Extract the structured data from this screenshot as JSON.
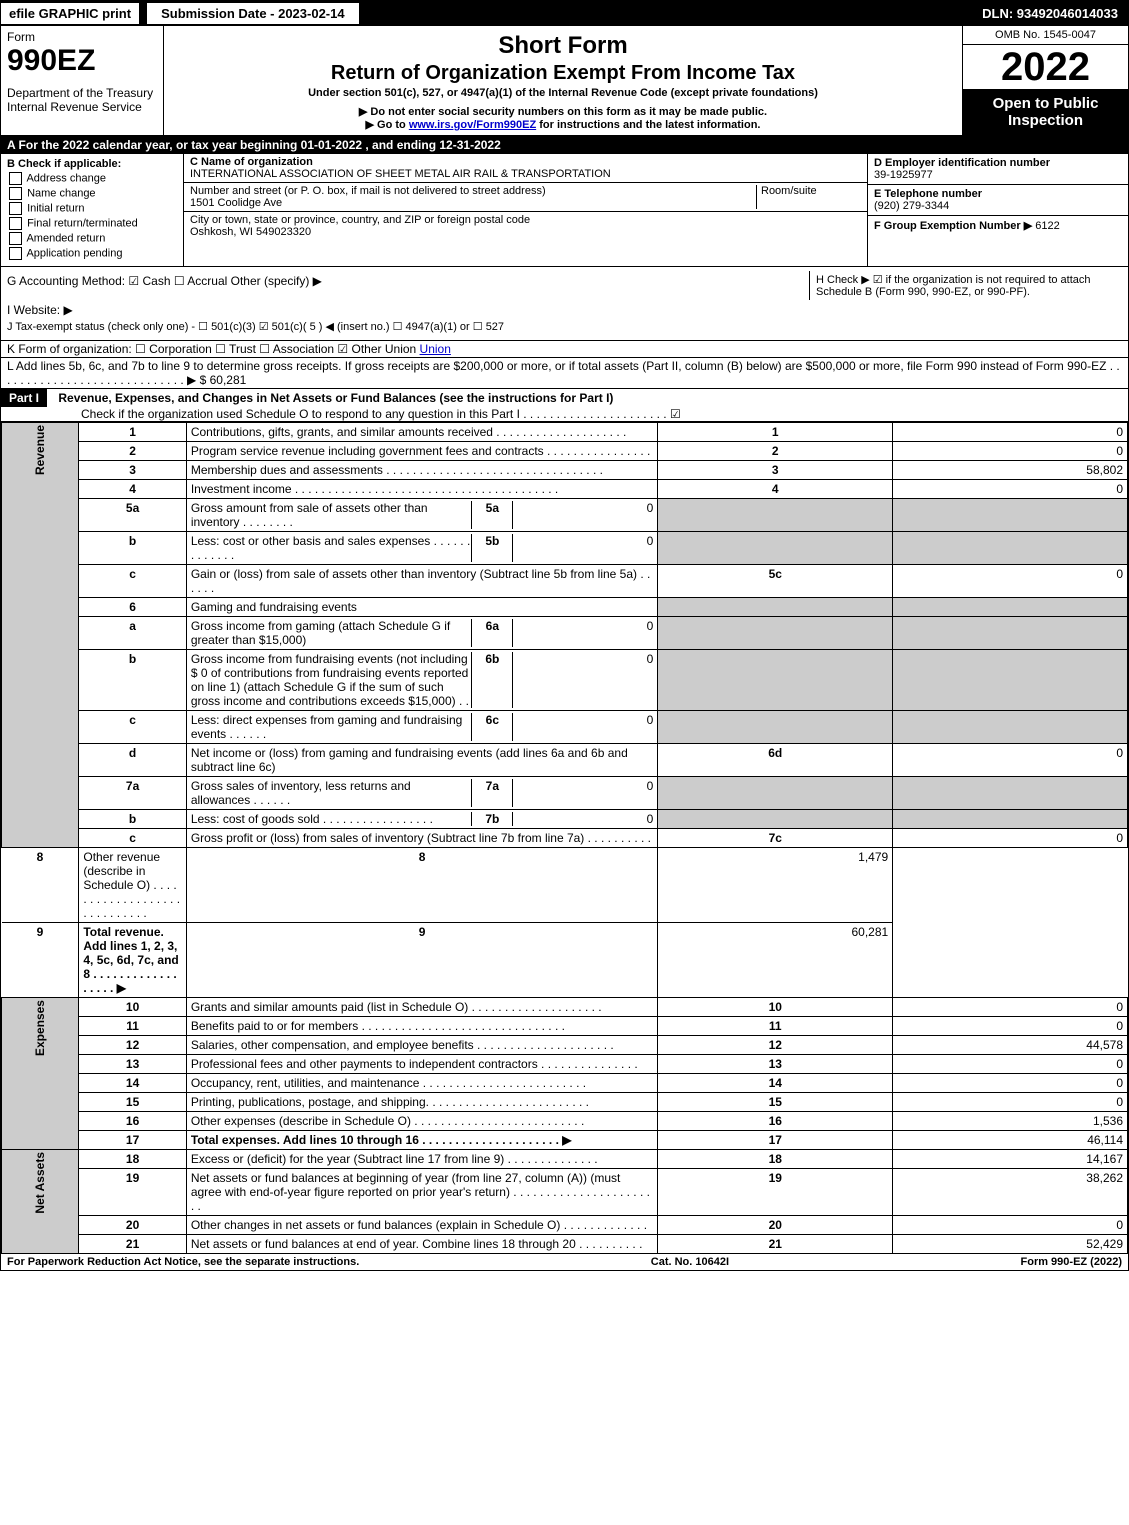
{
  "topbar": {
    "efile": "efile GRAPHIC print",
    "submission": "Submission Date - 2023-02-14",
    "dln": "DLN: 93492046014033"
  },
  "header": {
    "form_word": "Form",
    "form_num": "990EZ",
    "dept1": "Department of the Treasury",
    "dept2": "Internal Revenue Service",
    "title1": "Short Form",
    "title2": "Return of Organization Exempt From Income Tax",
    "sub1": "Under section 501(c), 527, or 4947(a)(1) of the Internal Revenue Code (except private foundations)",
    "sub2": "▶ Do not enter social security numbers on this form as it may be made public.",
    "sub3": "▶ Go to www.irs.gov/Form990EZ for instructions and the latest information.",
    "omb": "OMB No. 1545-0047",
    "year": "2022",
    "open": "Open to Public Inspection"
  },
  "sectionA": "A  For the 2022 calendar year, or tax year beginning 01-01-2022 , and ending 12-31-2022",
  "boxB": {
    "title": "B  Check if applicable:",
    "opts": [
      "Address change",
      "Name change",
      "Initial return",
      "Final return/terminated",
      "Amended return",
      "Application pending"
    ]
  },
  "boxC": {
    "label": "C Name of organization",
    "name": "INTERNATIONAL ASSOCIATION OF SHEET METAL AIR RAIL & TRANSPORTATION",
    "addr_label": "Number and street (or P. O. box, if mail is not delivered to street address)",
    "room_label": "Room/suite",
    "addr": "1501 Coolidge Ave",
    "city_label": "City or town, state or province, country, and ZIP or foreign postal code",
    "city": "Oshkosh, WI  549023320"
  },
  "boxD": {
    "label": "D Employer identification number",
    "val": "39-1925977"
  },
  "boxE": {
    "label": "E Telephone number",
    "val": "(920) 279-3344"
  },
  "boxF": {
    "label": "F Group Exemption Number  ▶",
    "val": "6122"
  },
  "lineG": "G Accounting Method:  ☑ Cash  ☐ Accrual  Other (specify) ▶",
  "lineH": "H  Check ▶ ☑ if the organization is not required to attach Schedule B (Form 990, 990-EZ, or 990-PF).",
  "lineI": "I Website: ▶",
  "lineJ": "J Tax-exempt status (check only one) - ☐ 501(c)(3)  ☑ 501(c)( 5 ) ◀ (insert no.)  ☐ 4947(a)(1) or  ☐ 527",
  "lineK": "K Form of organization:  ☐ Corporation  ☐ Trust  ☐ Association  ☑ Other Union",
  "lineL": "L Add lines 5b, 6c, and 7b to line 9 to determine gross receipts. If gross receipts are $200,000 or more, or if total assets (Part II, column (B) below) are $500,000 or more, file Form 990 instead of Form 990-EZ  . . . . . . . . . . . . . . . . . . . . . . . . . . . . .  ▶ $ 60,281",
  "part1": {
    "label": "Part I",
    "title": "Revenue, Expenses, and Changes in Net Assets or Fund Balances (see the instructions for Part I)",
    "check": "Check if the organization used Schedule O to respond to any question in this Part I  . . . . . . . . . . . . . . . . . . . . . .  ☑"
  },
  "sidelabels": {
    "revenue": "Revenue",
    "expenses": "Expenses",
    "netassets": "Net Assets"
  },
  "rows": [
    {
      "n": "1",
      "desc": "Contributions, gifts, grants, and similar amounts received  . . . . . . . . . . . . . . . . . . . .",
      "box": "1",
      "amt": "0"
    },
    {
      "n": "2",
      "desc": "Program service revenue including government fees and contracts  . . . . . . . . . . . . . . . .",
      "box": "2",
      "amt": "0"
    },
    {
      "n": "3",
      "desc": "Membership dues and assessments  . . . . . . . . . . . . . . . . . . . . . . . . . . . . . . . . .",
      "box": "3",
      "amt": "58,802"
    },
    {
      "n": "4",
      "desc": "Investment income  . . . . . . . . . . . . . . . . . . . . . . . . . . . . . . . . . . . . . . . .",
      "box": "4",
      "amt": "0"
    },
    {
      "n": "5a",
      "desc": "Gross amount from sale of assets other than inventory  . . . . . . . .",
      "ibox": "5a",
      "ival": "0"
    },
    {
      "n": "b",
      "desc": "Less: cost or other basis and sales expenses  . . . . . . . . . . . . .",
      "ibox": "5b",
      "ival": "0"
    },
    {
      "n": "c",
      "desc": "Gain or (loss) from sale of assets other than inventory (Subtract line 5b from line 5a)  . . . . . .",
      "box": "5c",
      "amt": "0"
    },
    {
      "n": "6",
      "desc": "Gaming and fundraising events"
    },
    {
      "n": "a",
      "desc": "Gross income from gaming (attach Schedule G if greater than $15,000)",
      "ibox": "6a",
      "ival": "0"
    },
    {
      "n": "b",
      "desc": "Gross income from fundraising events (not including $  0              of contributions from fundraising events reported on line 1) (attach Schedule G if the sum of such gross income and contributions exceeds $15,000)  . .",
      "ibox": "6b",
      "ival": "0"
    },
    {
      "n": "c",
      "desc": "Less: direct expenses from gaming and fundraising events  . . . . . .",
      "ibox": "6c",
      "ival": "0"
    },
    {
      "n": "d",
      "desc": "Net income or (loss) from gaming and fundraising events (add lines 6a and 6b and subtract line 6c)",
      "box": "6d",
      "amt": "0"
    },
    {
      "n": "7a",
      "desc": "Gross sales of inventory, less returns and allowances  . . . . . .",
      "ibox": "7a",
      "ival": "0"
    },
    {
      "n": "b",
      "desc": "Less: cost of goods sold  . . . . . . . . . . . . . . . . .",
      "ibox": "7b",
      "ival": "0"
    },
    {
      "n": "c",
      "desc": "Gross profit or (loss) from sales of inventory (Subtract line 7b from line 7a)  . . . . . . . . . .",
      "box": "7c",
      "amt": "0"
    },
    {
      "n": "8",
      "desc": "Other revenue (describe in Schedule O)  . . . . . . . . . . . . . . . . . . . . . . . . . . . . .",
      "box": "8",
      "amt": "1,479"
    },
    {
      "n": "9",
      "desc": "Total revenue. Add lines 1, 2, 3, 4, 5c, 6d, 7c, and 8  . . . . . . . . . . . . . . . . . .  ▶",
      "box": "9",
      "amt": "60,281",
      "bold": true
    },
    {
      "n": "10",
      "desc": "Grants and similar amounts paid (list in Schedule O)  . . . . . . . . . . . . . . . . . . . .",
      "box": "10",
      "amt": "0"
    },
    {
      "n": "11",
      "desc": "Benefits paid to or for members  . . . . . . . . . . . . . . . . . . . . . . . . . . . . . . .",
      "box": "11",
      "amt": "0"
    },
    {
      "n": "12",
      "desc": "Salaries, other compensation, and employee benefits  . . . . . . . . . . . . . . . . . . . . .",
      "box": "12",
      "amt": "44,578"
    },
    {
      "n": "13",
      "desc": "Professional fees and other payments to independent contractors  . . . . . . . . . . . . . . .",
      "box": "13",
      "amt": "0"
    },
    {
      "n": "14",
      "desc": "Occupancy, rent, utilities, and maintenance  . . . . . . . . . . . . . . . . . . . . . . . . .",
      "box": "14",
      "amt": "0"
    },
    {
      "n": "15",
      "desc": "Printing, publications, postage, and shipping.  . . . . . . . . . . . . . . . . . . . . . . . .",
      "box": "15",
      "amt": "0"
    },
    {
      "n": "16",
      "desc": "Other expenses (describe in Schedule O)  . . . . . . . . . . . . . . . . . . . . . . . . . .",
      "box": "16",
      "amt": "1,536"
    },
    {
      "n": "17",
      "desc": "Total expenses. Add lines 10 through 16  . . . . . . . . . . . . . . . . . . . . .  ▶",
      "box": "17",
      "amt": "46,114",
      "bold": true
    },
    {
      "n": "18",
      "desc": "Excess or (deficit) for the year (Subtract line 17 from line 9)  . . . . . . . . . . . . . .",
      "box": "18",
      "amt": "14,167"
    },
    {
      "n": "19",
      "desc": "Net assets or fund balances at beginning of year (from line 27, column (A)) (must agree with end-of-year figure reported on prior year's return)  . . . . . . . . . . . . . . . . . . . . . . .",
      "box": "19",
      "amt": "38,262"
    },
    {
      "n": "20",
      "desc": "Other changes in net assets or fund balances (explain in Schedule O)  . . . . . . . . . . . . .",
      "box": "20",
      "amt": "0"
    },
    {
      "n": "21",
      "desc": "Net assets or fund balances at end of year. Combine lines 18 through 20  . . . . . . . . . .",
      "box": "21",
      "amt": "52,429"
    }
  ],
  "footer": {
    "left": "For Paperwork Reduction Act Notice, see the separate instructions.",
    "mid": "Cat. No. 10642I",
    "right": "Form 990-EZ (2022)"
  }
}
